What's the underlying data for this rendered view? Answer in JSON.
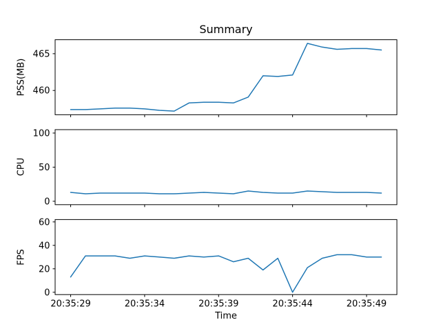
{
  "title": "Summary",
  "colors": {
    "line": "#1f77b4",
    "axis": "#000000",
    "background": "#ffffff"
  },
  "x_axis": {
    "label": "Time",
    "xlim": [
      27.95,
      51.05
    ],
    "ticks": [
      {
        "value": 29,
        "label": "20:35:29"
      },
      {
        "value": 34,
        "label": "20:35:34"
      },
      {
        "value": 39,
        "label": "20:35:39"
      },
      {
        "value": 44,
        "label": "20:35:44"
      },
      {
        "value": 49,
        "label": "20:35:49"
      }
    ]
  },
  "chart_data": [
    {
      "type": "line",
      "name": "pss",
      "ylabel": "PSS(MB)",
      "ylim": [
        456.7,
        466.9
      ],
      "yticks": [
        460,
        465
      ],
      "x": [
        29,
        30,
        31,
        32,
        33,
        34,
        35,
        36,
        37,
        38,
        39,
        40,
        41,
        42,
        43,
        44,
        45,
        46,
        47,
        48,
        49,
        50
      ],
      "values": [
        457.4,
        457.4,
        457.5,
        457.6,
        457.6,
        457.5,
        457.3,
        457.2,
        458.3,
        458.4,
        458.4,
        458.3,
        459.1,
        462.0,
        461.9,
        462.1,
        466.4,
        465.9,
        465.6,
        465.7,
        465.7,
        465.5
      ]
    },
    {
      "type": "line",
      "name": "cpu",
      "ylabel": "CPU",
      "ylim": [
        -5,
        105
      ],
      "yticks": [
        0,
        50,
        100
      ],
      "x": [
        29,
        30,
        31,
        32,
        33,
        34,
        35,
        36,
        37,
        38,
        39,
        40,
        41,
        42,
        43,
        44,
        45,
        46,
        47,
        48,
        49,
        50
      ],
      "values": [
        13,
        11,
        12,
        12,
        12,
        12,
        11,
        11,
        12,
        13,
        12,
        11,
        15,
        13,
        12,
        12,
        15,
        14,
        13,
        13,
        13,
        12
      ]
    },
    {
      "type": "line",
      "name": "fps",
      "ylabel": "FPS",
      "ylim": [
        -2,
        62
      ],
      "yticks": [
        0,
        20,
        40,
        60
      ],
      "x": [
        29,
        30,
        31,
        32,
        33,
        34,
        35,
        36,
        37,
        38,
        39,
        40,
        41,
        42,
        43,
        44,
        45,
        46,
        47,
        48,
        49,
        50
      ],
      "values": [
        13,
        31,
        31,
        31,
        29,
        31,
        30,
        29,
        31,
        30,
        31,
        26,
        29,
        19,
        29,
        0,
        21,
        29,
        32,
        32,
        30,
        30
      ]
    }
  ]
}
